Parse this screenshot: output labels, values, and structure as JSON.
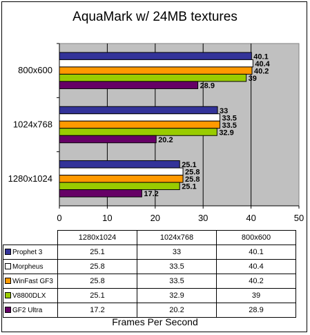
{
  "chart_data": {
    "type": "bar",
    "orientation": "horizontal",
    "title": "AquaMark w/ 24MB textures",
    "xlabel": "Frames Per Second",
    "ylabel": "",
    "xlim": [
      0,
      50
    ],
    "xticks": [
      0,
      10,
      20,
      30,
      40,
      50
    ],
    "grid": true,
    "categories": [
      "800x600",
      "1024x768",
      "1280x1024"
    ],
    "table_columns": [
      "1280x1024",
      "1024x768",
      "800x600"
    ],
    "series": [
      {
        "name": "Prophet 3",
        "color": "#333399",
        "values": [
          40.1,
          33,
          25.1
        ]
      },
      {
        "name": "Morpheus",
        "color": "#ffffff",
        "values": [
          40.4,
          33.5,
          25.8
        ]
      },
      {
        "name": "WinFast GF3",
        "color": "#ff9900",
        "values": [
          40.2,
          33.5,
          25.8
        ]
      },
      {
        "name": "V8800DLX",
        "color": "#99cc00",
        "values": [
          39,
          32.9,
          25.1
        ]
      },
      {
        "name": "GF2 Ultra",
        "color": "#660066",
        "values": [
          28.9,
          20.2,
          17.2
        ]
      }
    ],
    "plot_background": "#c0c0c0"
  }
}
